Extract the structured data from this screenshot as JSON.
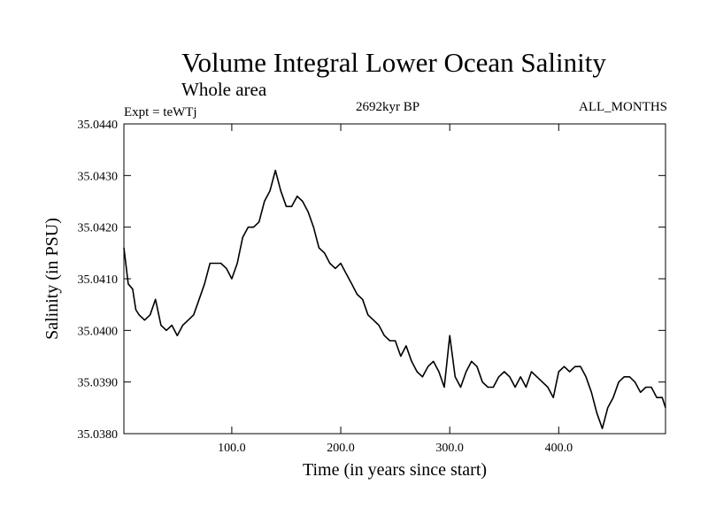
{
  "chart_data": {
    "type": "line",
    "title": "Volume Integral Lower Ocean Salinity",
    "subtitle": "Whole area",
    "experiment": "Expt = teWTj",
    "period": "2692kyr BP",
    "months": "ALL_MONTHS",
    "xlabel": "Time (in years since start)",
    "ylabel": "Salinity (in PSU)",
    "xlim": [
      1,
      498
    ],
    "ylim": [
      35.038,
      35.044
    ],
    "xticks": [
      100,
      200,
      300,
      400
    ],
    "xtick_labels": [
      "100.0",
      "200.0",
      "300.0",
      "400.0"
    ],
    "yticks": [
      35.038,
      35.039,
      35.04,
      35.041,
      35.042,
      35.043,
      35.044
    ],
    "ytick_labels": [
      "35.0380",
      "35.0390",
      "35.0400",
      "35.0410",
      "35.0420",
      "35.0430",
      "35.0440"
    ],
    "series": [
      {
        "name": "salinity",
        "color": "#000000",
        "x": [
          1,
          5,
          9,
          12,
          15,
          20,
          25,
          30,
          35,
          40,
          45,
          50,
          55,
          60,
          65,
          70,
          75,
          80,
          85,
          90,
          95,
          100,
          105,
          110,
          115,
          120,
          125,
          130,
          135,
          140,
          145,
          150,
          155,
          160,
          165,
          170,
          175,
          180,
          185,
          190,
          195,
          200,
          205,
          210,
          215,
          220,
          225,
          230,
          235,
          240,
          245,
          250,
          255,
          260,
          265,
          270,
          275,
          280,
          285,
          290,
          295,
          300,
          305,
          310,
          315,
          320,
          325,
          330,
          335,
          340,
          345,
          350,
          355,
          360,
          365,
          370,
          375,
          380,
          385,
          390,
          395,
          400,
          405,
          410,
          415,
          420,
          425,
          430,
          435,
          440,
          445,
          450,
          455,
          460,
          465,
          470,
          475,
          480,
          485,
          490,
          495,
          498
        ],
        "y": [
          35.0416,
          35.0409,
          35.0408,
          35.0404,
          35.0403,
          35.0402,
          35.0403,
          35.0406,
          35.0401,
          35.04,
          35.0401,
          35.0399,
          35.0401,
          35.0402,
          35.0403,
          35.0406,
          35.0409,
          35.0413,
          35.0413,
          35.0413,
          35.0412,
          35.041,
          35.0413,
          35.0418,
          35.042,
          35.042,
          35.0421,
          35.0425,
          35.0427,
          35.0431,
          35.0427,
          35.0424,
          35.0424,
          35.0426,
          35.0425,
          35.0423,
          35.042,
          35.0416,
          35.0415,
          35.0413,
          35.0412,
          35.0413,
          35.0411,
          35.0409,
          35.0407,
          35.0406,
          35.0403,
          35.0402,
          35.0401,
          35.0399,
          35.0398,
          35.0398,
          35.0395,
          35.0397,
          35.0394,
          35.0392,
          35.0391,
          35.0393,
          35.0394,
          35.0392,
          35.0389,
          35.0399,
          35.0391,
          35.0389,
          35.0392,
          35.0394,
          35.0393,
          35.039,
          35.0389,
          35.0389,
          35.0391,
          35.0392,
          35.0391,
          35.0389,
          35.0391,
          35.0389,
          35.0392,
          35.0391,
          35.039,
          35.0389,
          35.0387,
          35.0392,
          35.0393,
          35.0392,
          35.0393,
          35.0393,
          35.0391,
          35.0388,
          35.0384,
          35.0381,
          35.0385,
          35.0387,
          35.039,
          35.0391,
          35.0391,
          35.039,
          35.0388,
          35.0389,
          35.0389,
          35.0387,
          35.0387,
          35.0385
        ]
      }
    ]
  }
}
